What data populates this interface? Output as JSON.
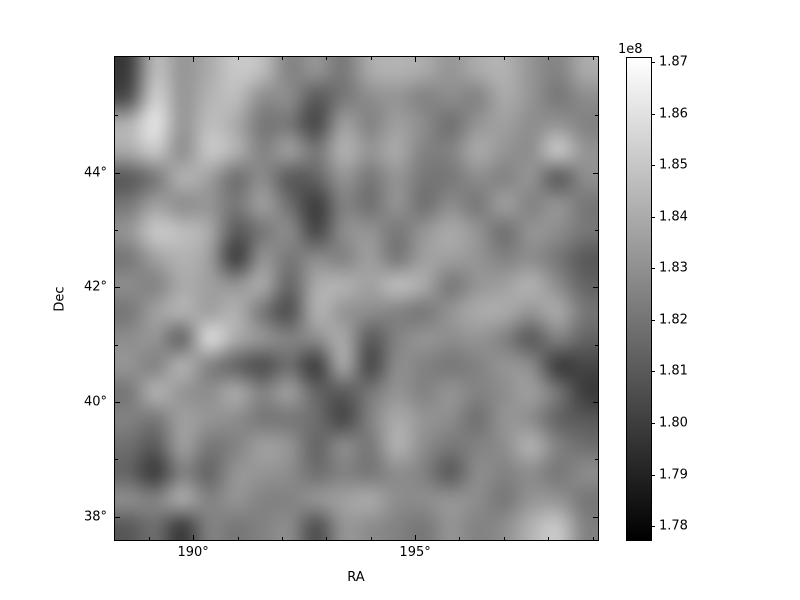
{
  "figure": {
    "background_color": "#ffffff",
    "frame_color": "#000000"
  },
  "axes": {
    "xlabel": "RA",
    "ylabel": "Dec",
    "x_tick_labels": [
      "190°",
      "195°"
    ],
    "x_major_deg": [
      190,
      195
    ],
    "x_minor_deg": [
      189,
      191,
      192,
      193,
      194,
      196,
      197,
      198,
      199
    ],
    "y_tick_labels": [
      "44°",
      "42°",
      "40°",
      "38°"
    ],
    "y_major_deg": [
      44,
      42,
      40,
      38
    ],
    "y_minor_deg": [
      45,
      43,
      41,
      39
    ]
  },
  "colorbar": {
    "offset_label": "1e8",
    "tick_labels": [
      "1.87",
      "1.86",
      "1.85",
      "1.84",
      "1.83",
      "1.82",
      "1.81",
      "1.80",
      "1.79",
      "1.78"
    ],
    "tick_values": [
      1.87,
      1.86,
      1.85,
      1.84,
      1.83,
      1.82,
      1.81,
      1.8,
      1.79,
      1.78
    ],
    "vmin": 1.7773,
    "vmax": 1.8708,
    "units": "1e8",
    "cmap": "gray",
    "cmap_low_color": "#000000",
    "cmap_high_color": "#ffffff"
  },
  "chart_data": {
    "type": "heatmap",
    "title": "",
    "xlabel": "RA",
    "ylabel": "Dec",
    "x_range_deg": [
      188.24,
      199.12
    ],
    "y_range_deg": [
      37.59,
      46.02
    ],
    "value_units": "1e8",
    "vmin": 1.7773,
    "vmax": 1.8708,
    "colormap": "gray",
    "interpolation": "bilinear",
    "grid_rows": 18,
    "grid_cols": 18,
    "values": [
      [
        1.799,
        1.847,
        1.832,
        1.84,
        1.851,
        1.847,
        1.825,
        1.832,
        1.821,
        1.84,
        1.843,
        1.84,
        1.832,
        1.84,
        1.843,
        1.832,
        1.825,
        1.84
      ],
      [
        1.806,
        1.854,
        1.832,
        1.843,
        1.847,
        1.829,
        1.829,
        1.81,
        1.821,
        1.829,
        1.832,
        1.825,
        1.829,
        1.825,
        1.84,
        1.832,
        1.821,
        1.829
      ],
      [
        1.843,
        1.862,
        1.832,
        1.847,
        1.84,
        1.821,
        1.821,
        1.803,
        1.836,
        1.825,
        1.836,
        1.829,
        1.818,
        1.832,
        1.836,
        1.829,
        1.832,
        1.825
      ],
      [
        1.84,
        1.851,
        1.829,
        1.851,
        1.843,
        1.825,
        1.836,
        1.821,
        1.843,
        1.832,
        1.84,
        1.825,
        1.825,
        1.84,
        1.832,
        1.829,
        1.851,
        1.832
      ],
      [
        1.81,
        1.821,
        1.843,
        1.836,
        1.818,
        1.829,
        1.81,
        1.814,
        1.832,
        1.821,
        1.832,
        1.821,
        1.821,
        1.829,
        1.825,
        1.832,
        1.81,
        1.829
      ],
      [
        1.821,
        1.836,
        1.829,
        1.832,
        1.821,
        1.836,
        1.818,
        1.799,
        1.825,
        1.818,
        1.832,
        1.818,
        1.829,
        1.821,
        1.836,
        1.825,
        1.832,
        1.821
      ],
      [
        1.832,
        1.851,
        1.847,
        1.84,
        1.81,
        1.821,
        1.829,
        1.803,
        1.829,
        1.832,
        1.821,
        1.832,
        1.84,
        1.832,
        1.818,
        1.832,
        1.829,
        1.821
      ],
      [
        1.821,
        1.836,
        1.843,
        1.836,
        1.799,
        1.832,
        1.821,
        1.829,
        1.825,
        1.836,
        1.821,
        1.836,
        1.836,
        1.832,
        1.825,
        1.829,
        1.821,
        1.81
      ],
      [
        1.829,
        1.825,
        1.84,
        1.836,
        1.832,
        1.84,
        1.814,
        1.84,
        1.843,
        1.836,
        1.847,
        1.84,
        1.821,
        1.832,
        1.836,
        1.843,
        1.829,
        1.814
      ],
      [
        1.821,
        1.836,
        1.843,
        1.836,
        1.843,
        1.821,
        1.806,
        1.843,
        1.832,
        1.829,
        1.825,
        1.821,
        1.832,
        1.84,
        1.84,
        1.832,
        1.84,
        1.821
      ],
      [
        1.829,
        1.832,
        1.814,
        1.858,
        1.84,
        1.832,
        1.825,
        1.829,
        1.84,
        1.81,
        1.825,
        1.832,
        1.829,
        1.832,
        1.825,
        1.81,
        1.825,
        1.814
      ],
      [
        1.832,
        1.825,
        1.843,
        1.825,
        1.814,
        1.806,
        1.818,
        1.799,
        1.84,
        1.803,
        1.829,
        1.825,
        1.821,
        1.825,
        1.832,
        1.829,
        1.799,
        1.803
      ],
      [
        1.821,
        1.843,
        1.832,
        1.829,
        1.84,
        1.825,
        1.836,
        1.814,
        1.81,
        1.821,
        1.832,
        1.825,
        1.832,
        1.825,
        1.829,
        1.836,
        1.821,
        1.799
      ],
      [
        1.825,
        1.821,
        1.836,
        1.832,
        1.829,
        1.821,
        1.821,
        1.818,
        1.803,
        1.825,
        1.84,
        1.832,
        1.829,
        1.818,
        1.832,
        1.829,
        1.814,
        1.81
      ],
      [
        1.818,
        1.81,
        1.836,
        1.821,
        1.825,
        1.836,
        1.832,
        1.814,
        1.829,
        1.821,
        1.843,
        1.829,
        1.821,
        1.825,
        1.829,
        1.843,
        1.825,
        1.818
      ],
      [
        1.814,
        1.799,
        1.825,
        1.814,
        1.832,
        1.832,
        1.829,
        1.818,
        1.825,
        1.821,
        1.829,
        1.825,
        1.81,
        1.829,
        1.825,
        1.829,
        1.821,
        1.829
      ],
      [
        1.829,
        1.825,
        1.84,
        1.825,
        1.832,
        1.825,
        1.825,
        1.832,
        1.836,
        1.84,
        1.829,
        1.829,
        1.832,
        1.829,
        1.821,
        1.832,
        1.832,
        1.821
      ],
      [
        1.81,
        1.818,
        1.799,
        1.825,
        1.821,
        1.825,
        1.829,
        1.806,
        1.832,
        1.829,
        1.825,
        1.821,
        1.832,
        1.825,
        1.829,
        1.843,
        1.851,
        1.825
      ]
    ]
  }
}
